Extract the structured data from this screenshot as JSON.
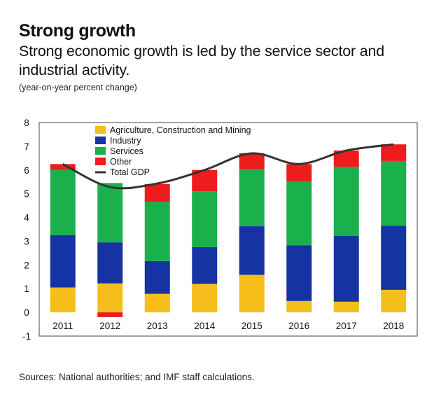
{
  "header": {
    "title": "Strong growth",
    "subtitle": "Strong economic growth is led by the service sector and industrial activity.",
    "note": "(year-on-year percent change)"
  },
  "footer": {
    "source": "Sources: National authorities; and IMF staff calculations."
  },
  "chart_data": {
    "type": "bar",
    "stacked": true,
    "categories": [
      "2011",
      "2012",
      "2013",
      "2014",
      "2015",
      "2016",
      "2017",
      "2018"
    ],
    "ylim": [
      -1,
      8
    ],
    "yticks": [
      -1,
      0,
      1,
      2,
      3,
      4,
      5,
      6,
      7,
      8
    ],
    "grid": false,
    "legend": "top-left (inside plot)",
    "series": [
      {
        "name": "Agriculture, Construction and Mining",
        "color": "#f5be1a",
        "values": [
          1.05,
          1.22,
          0.78,
          1.2,
          1.58,
          0.48,
          0.45,
          0.95
        ]
      },
      {
        "name": "Industry",
        "color": "#1533a3",
        "values": [
          2.2,
          1.73,
          1.38,
          1.55,
          2.05,
          2.35,
          2.78,
          2.7
        ]
      },
      {
        "name": "Services",
        "color": "#1ab04c",
        "values": [
          2.75,
          2.5,
          2.5,
          2.35,
          2.4,
          2.68,
          2.9,
          2.73
        ]
      },
      {
        "name": "Other",
        "color": "#ee1c1c",
        "values": [
          0.25,
          -0.2,
          0.75,
          0.9,
          0.68,
          0.74,
          0.69,
          0.7
        ]
      }
    ],
    "line_series": {
      "name": "Total GDP",
      "color": "#333333",
      "values": [
        6.25,
        5.28,
        5.43,
        6.0,
        6.7,
        6.25,
        6.82,
        7.08
      ]
    }
  }
}
